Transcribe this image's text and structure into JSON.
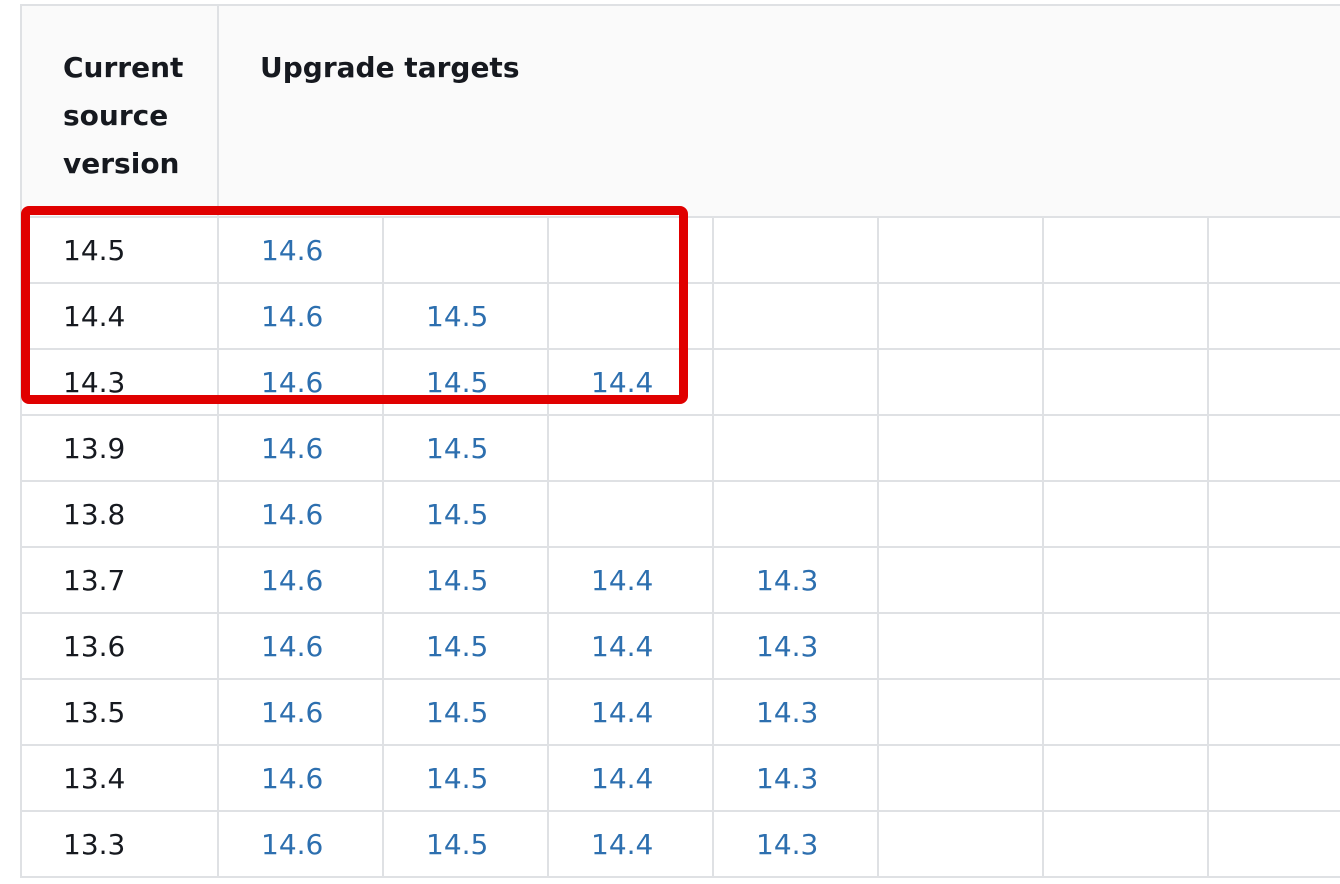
{
  "table": {
    "headers": {
      "source": "Current source version",
      "targets": "Upgrade targets"
    },
    "rows": [
      {
        "source": "14.5",
        "targets": [
          "14.6"
        ]
      },
      {
        "source": "14.4",
        "targets": [
          "14.6",
          "14.5"
        ]
      },
      {
        "source": "14.3",
        "targets": [
          "14.6",
          "14.5",
          "14.4"
        ]
      },
      {
        "source": "13.9",
        "targets": [
          "14.6",
          "14.5"
        ]
      },
      {
        "source": "13.8",
        "targets": [
          "14.6",
          "14.5"
        ]
      },
      {
        "source": "13.7",
        "targets": [
          "14.6",
          "14.5",
          "14.4",
          "14.3"
        ]
      },
      {
        "source": "13.6",
        "targets": [
          "14.6",
          "14.5",
          "14.4",
          "14.3"
        ]
      },
      {
        "source": "13.5",
        "targets": [
          "14.6",
          "14.5",
          "14.4",
          "14.3"
        ]
      },
      {
        "source": "13.4",
        "targets": [
          "14.6",
          "14.5",
          "14.4",
          "14.3"
        ]
      },
      {
        "source": "13.3",
        "targets": [
          "14.6",
          "14.5",
          "14.4",
          "14.3"
        ]
      }
    ]
  },
  "highlight": {
    "color": "#e00000",
    "covers_sources": [
      "14.5",
      "14.4",
      "14.3"
    ]
  },
  "colors": {
    "link": "#2d6faf",
    "text": "#16191f",
    "border": "#dfe1e4",
    "header_bg": "#fafafa"
  }
}
